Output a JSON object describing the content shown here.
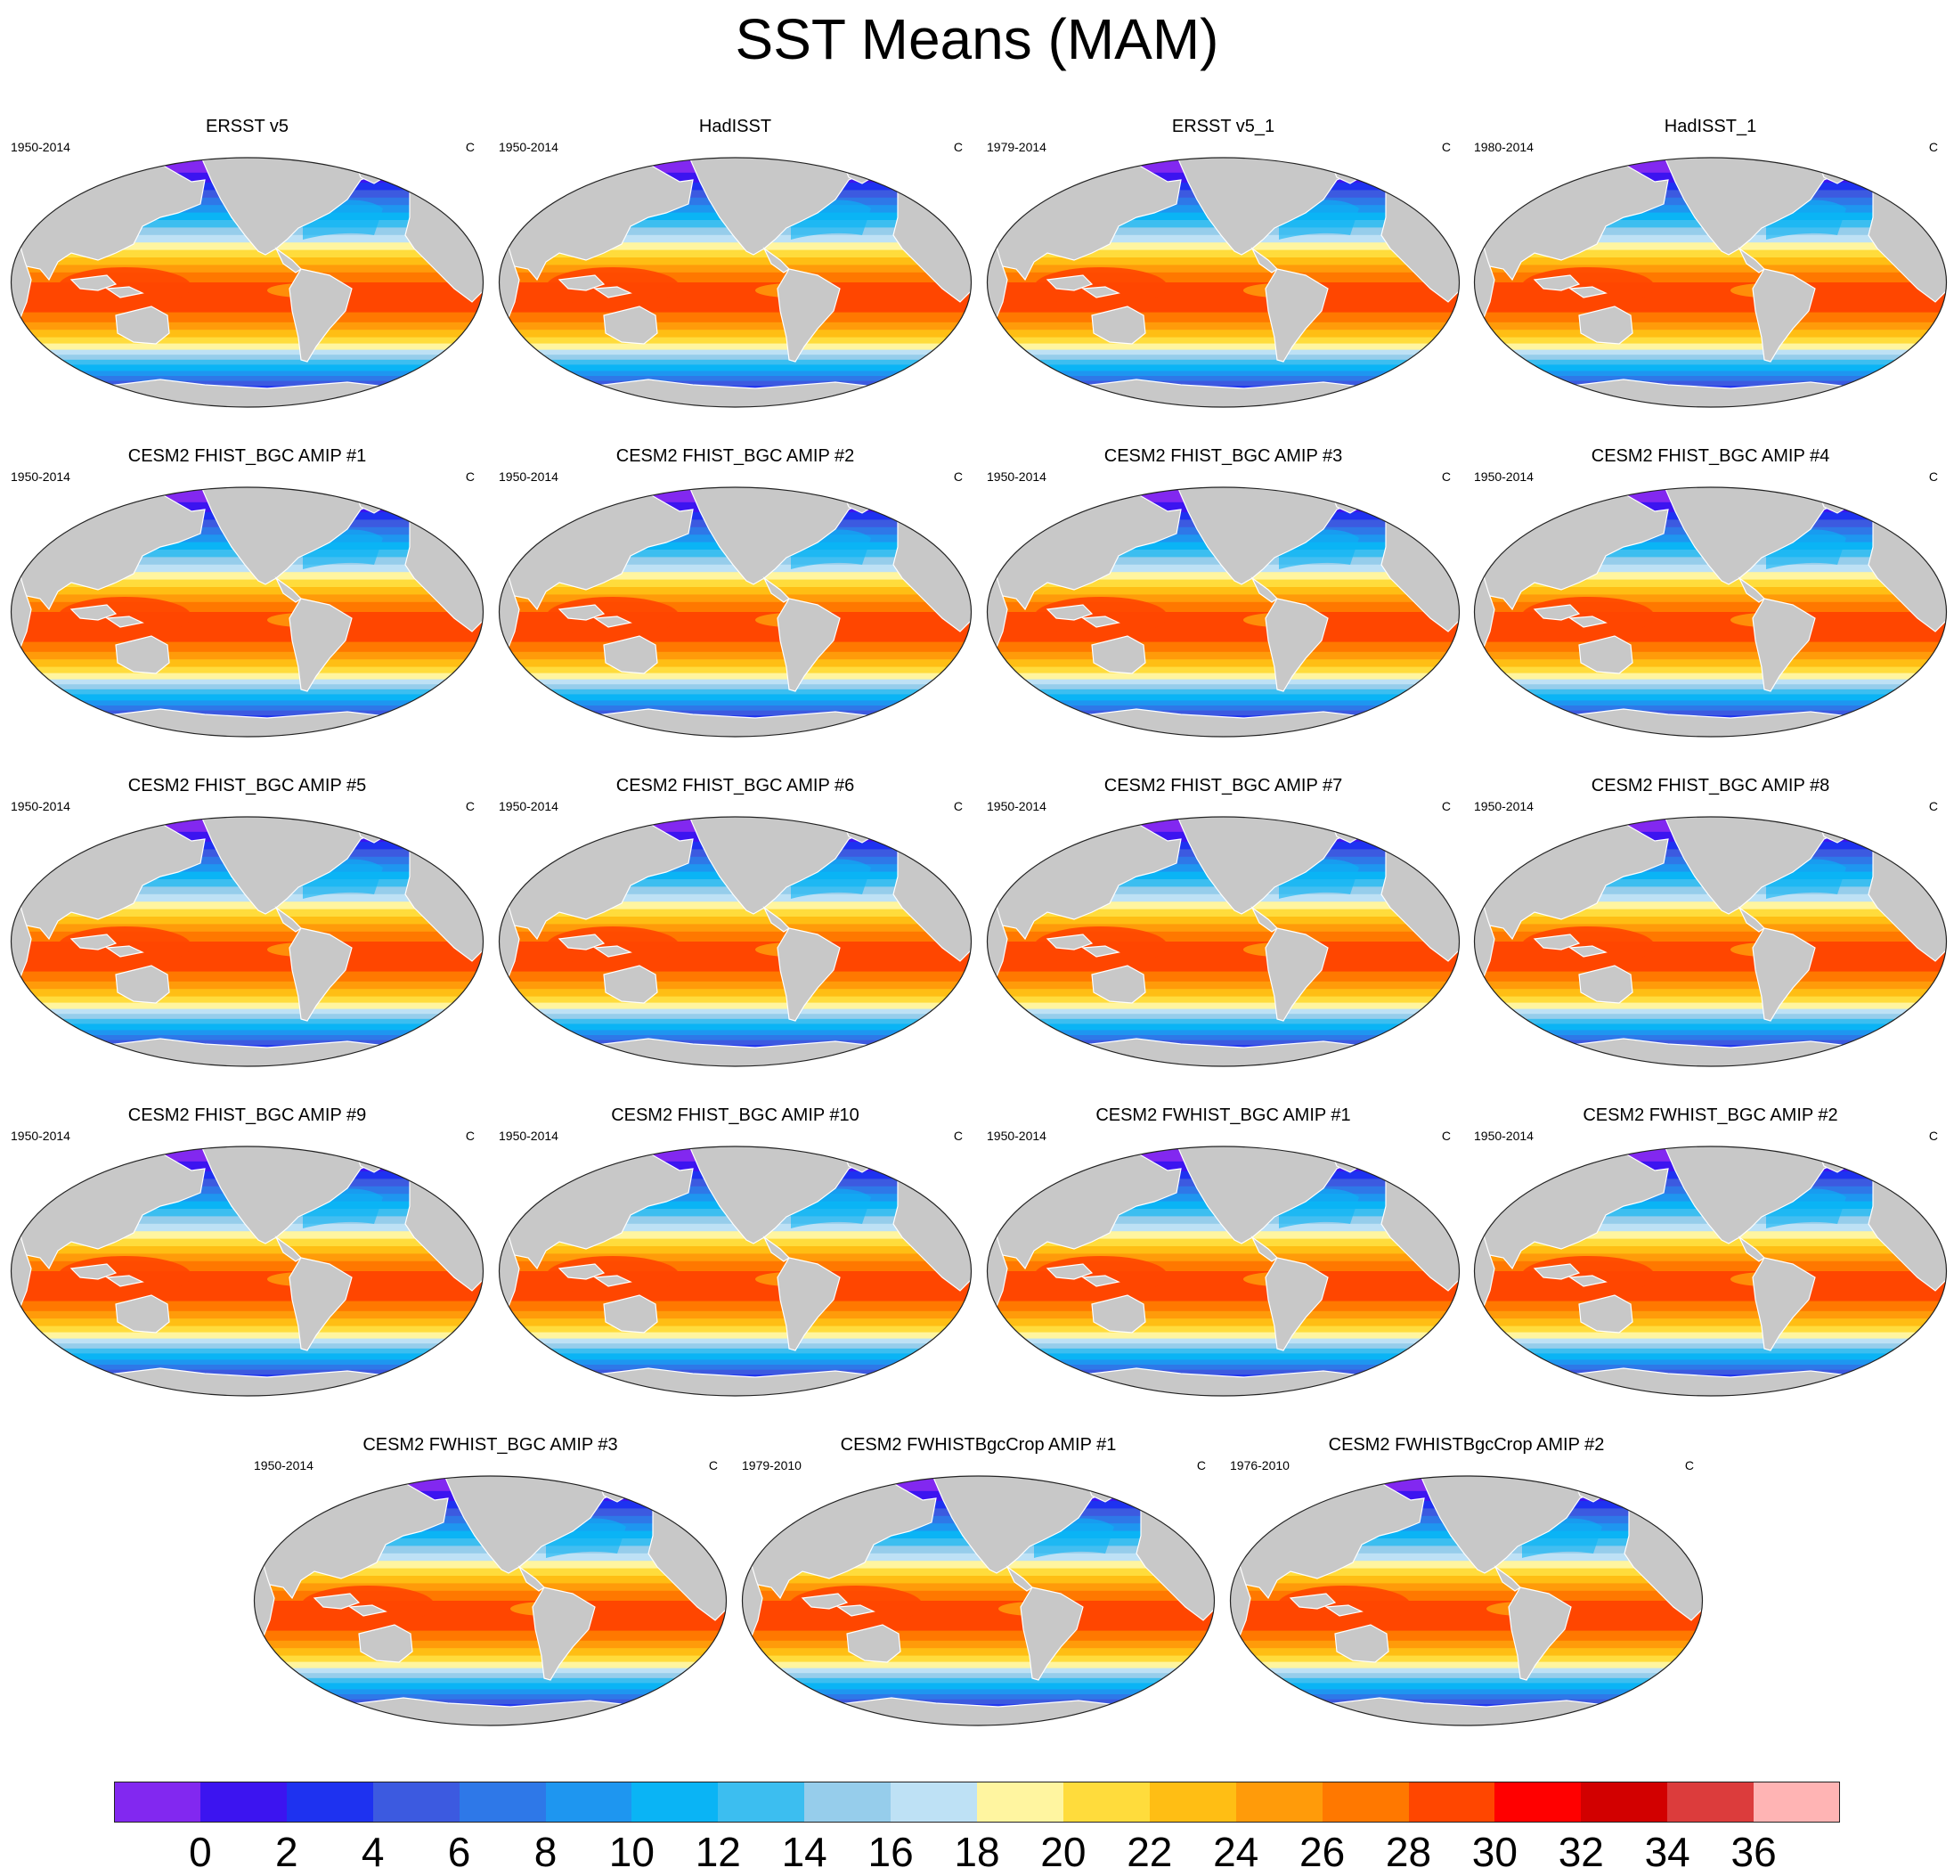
{
  "main_title": "SST Means (MAM)",
  "units": "C",
  "panels": [
    {
      "title": "ERSST v5",
      "years": "1950-2014"
    },
    {
      "title": "HadISST",
      "years": "1950-2014"
    },
    {
      "title": "ERSST v5_1",
      "years": "1979-2014"
    },
    {
      "title": "HadISST_1",
      "years": "1980-2014"
    },
    {
      "title": "CESM2 FHIST_BGC AMIP #1",
      "years": "1950-2014"
    },
    {
      "title": "CESM2 FHIST_BGC AMIP #2",
      "years": "1950-2014"
    },
    {
      "title": "CESM2 FHIST_BGC AMIP #3",
      "years": "1950-2014"
    },
    {
      "title": "CESM2 FHIST_BGC AMIP #4",
      "years": "1950-2014"
    },
    {
      "title": "CESM2 FHIST_BGC AMIP #5",
      "years": "1950-2014"
    },
    {
      "title": "CESM2 FHIST_BGC AMIP #6",
      "years": "1950-2014"
    },
    {
      "title": "CESM2 FHIST_BGC AMIP #7",
      "years": "1950-2014"
    },
    {
      "title": "CESM2 FHIST_BGC AMIP #8",
      "years": "1950-2014"
    },
    {
      "title": "CESM2 FHIST_BGC AMIP #9",
      "years": "1950-2014"
    },
    {
      "title": "CESM2 FHIST_BGC AMIP #10",
      "years": "1950-2014"
    },
    {
      "title": "CESM2 FWHIST_BGC AMIP #1",
      "years": "1950-2014"
    },
    {
      "title": "CESM2 FWHIST_BGC AMIP #2",
      "years": "1950-2014"
    },
    {
      "title": "CESM2 FWHIST_BGC AMIP #3",
      "years": "1950-2014"
    },
    {
      "title": "CESM2 FWHISTBgcCrop AMIP #1",
      "years": "1979-2010"
    },
    {
      "title": "CESM2 FWHISTBgcCrop AMIP #2",
      "years": "1976-2010"
    }
  ],
  "colorbar": {
    "labels": [
      "0",
      "2",
      "4",
      "6",
      "8",
      "10",
      "12",
      "14",
      "16",
      "18",
      "20",
      "22",
      "24",
      "26",
      "28",
      "30",
      "32",
      "34",
      "36"
    ],
    "colors": [
      "#8228f0",
      "#3c14f0",
      "#1e32f0",
      "#3c5ae0",
      "#2e78e8",
      "#1e96f0",
      "#0ab4f5",
      "#3cbef0",
      "#96cdeb",
      "#bee1f5",
      "#fff5a0",
      "#ffdc3c",
      "#ffbe14",
      "#ff9b0a",
      "#ff7800",
      "#ff4600",
      "#ff0000",
      "#d20000",
      "#dc3c3c",
      "#ffb4b4"
    ]
  },
  "land_color": "#c8c8c8",
  "coast_color": "#ffffff"
}
